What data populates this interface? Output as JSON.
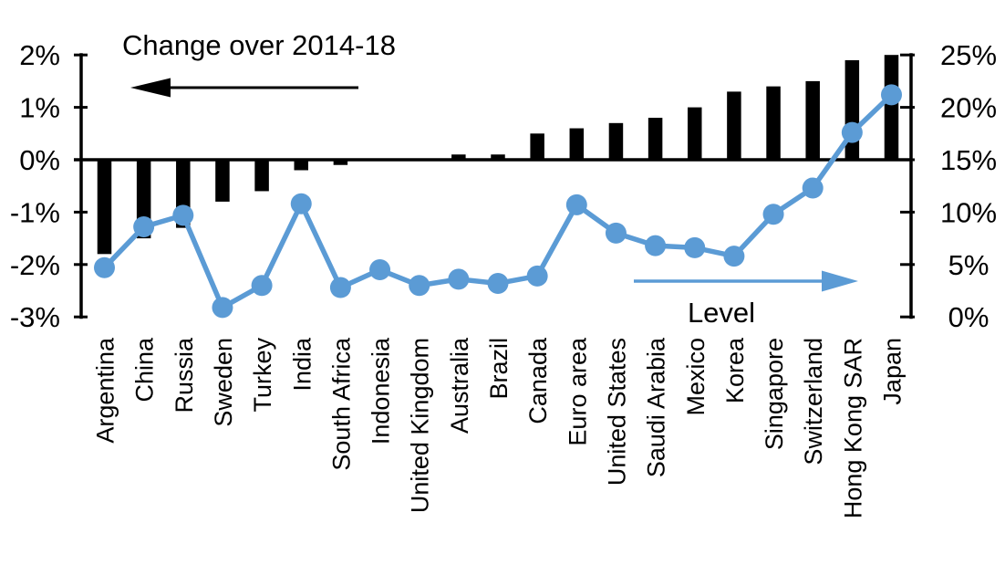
{
  "chart_data": {
    "type": "combo_bar_line",
    "title": "Change over 2014-18",
    "categories": [
      "Argentina",
      "China",
      "Russia",
      "Sweden",
      "Turkey",
      "India",
      "South Africa",
      "Indonesia",
      "United Kingdom",
      "Australia",
      "Brazil",
      "Canada",
      "Euro area",
      "United States",
      "Saudi Arabia",
      "Mexico",
      "Korea",
      "Singapore",
      "Switzerland",
      "Hong Kong SAR",
      "Japan"
    ],
    "series": [
      {
        "name": "Change over 2014-18",
        "type": "bar",
        "axis": "left",
        "color": "#000000",
        "unit": "%",
        "values": [
          -1.8,
          -1.5,
          -1.3,
          -0.8,
          -0.6,
          -0.2,
          -0.1,
          0,
          0,
          0.1,
          0.1,
          0.5,
          0.6,
          0.7,
          0.8,
          1.0,
          1.3,
          1.4,
          1.5,
          1.9,
          2.0
        ]
      },
      {
        "name": "Level",
        "type": "line",
        "axis": "right",
        "color": "#5B9BD5",
        "unit": "%",
        "values": [
          4.7,
          8.6,
          9.7,
          0.9,
          3.0,
          10.8,
          2.8,
          4.5,
          3.0,
          3.6,
          3.2,
          3.9,
          10.7,
          8.0,
          6.8,
          6.6,
          5.8,
          9.8,
          12.3,
          17.6,
          21.2
        ]
      }
    ],
    "left_axis": {
      "min": -3,
      "max": 2,
      "tick_step": 1,
      "tick_labels": [
        "2%",
        "1%",
        "0%",
        "-1%",
        "-2%",
        "-3%"
      ]
    },
    "right_axis": {
      "min": 0,
      "max": 25,
      "tick_step": 5,
      "tick_labels": [
        "25%",
        "20%",
        "15%",
        "10%",
        "5%",
        "0%"
      ]
    },
    "legend": {
      "bar_annotation": "Change over 2014-18",
      "bar_arrow_direction": "left",
      "line_annotation": "Level",
      "line_arrow_direction": "right"
    },
    "layout_hints": {
      "grid": false,
      "zero_line": true,
      "axes_aligned": "left 0% = right 15%",
      "background": "#FFFFFF"
    }
  }
}
